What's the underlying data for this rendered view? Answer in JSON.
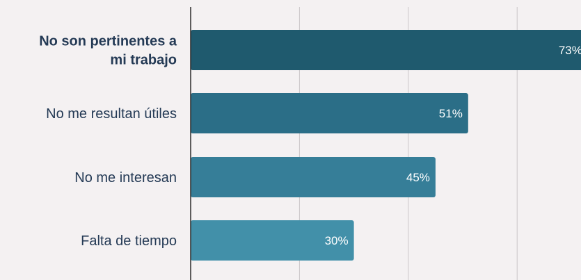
{
  "chart_data": {
    "type": "bar",
    "orientation": "horizontal",
    "categories": [
      [
        "No son pertinentes a",
        "mi trabajo"
      ],
      [
        "No me resultan útiles"
      ],
      [
        "No me interesan"
      ],
      [
        "Falta de tiempo"
      ]
    ],
    "values": [
      73,
      51,
      45,
      30
    ],
    "value_labels": [
      "73%",
      "51%",
      "45%",
      "30%"
    ],
    "highlighted_category_index": 0,
    "xlim": [
      0,
      75
    ],
    "grid": true,
    "colors": [
      "#1f5a6e",
      "#2b6e87",
      "#367e98",
      "#4290a9"
    ],
    "label_color": "#243a55",
    "gridline_color": "#c9c6c8",
    "axis_color": "#2b2b2b"
  }
}
